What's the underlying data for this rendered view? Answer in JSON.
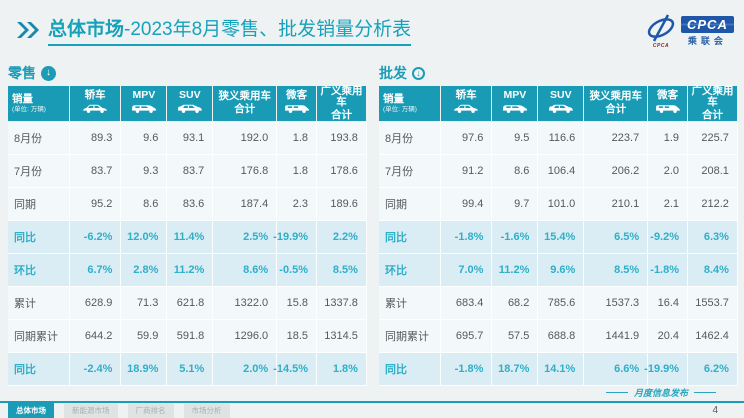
{
  "title": {
    "bold": "总体市场",
    "rest": "-2023年8月零售、批发销量分析表"
  },
  "logo": {
    "acronym": "CPCA",
    "name": "乘联会",
    "caption": "CPCA"
  },
  "columns": [
    {
      "label": "销量",
      "sub": "(单位: 万辆)"
    },
    {
      "label": "轿车",
      "icon": "sedan-icon"
    },
    {
      "label": "MPV",
      "icon": "mpv-icon"
    },
    {
      "label": "SUV",
      "icon": "suv-icon"
    },
    {
      "label": "狭义乘用车",
      "label2": "合计"
    },
    {
      "label": "微客",
      "icon": "microvan-icon"
    },
    {
      "label": "广义乘用车",
      "label2": "合计"
    }
  ],
  "tables": [
    {
      "name": "零售",
      "arrow_style": "filled",
      "rows": [
        {
          "label": "8月份",
          "type": "normal",
          "values": [
            "89.3",
            "9.6",
            "93.1",
            "192.0",
            "1.8",
            "193.8"
          ]
        },
        {
          "label": "7月份",
          "type": "normal",
          "values": [
            "83.7",
            "9.3",
            "83.7",
            "176.8",
            "1.8",
            "178.6"
          ]
        },
        {
          "label": "同期",
          "type": "normal",
          "values": [
            "95.2",
            "8.6",
            "83.6",
            "187.4",
            "2.3",
            "189.6"
          ]
        },
        {
          "label": "同比",
          "type": "percent",
          "values": [
            "-6.2%",
            "12.0%",
            "11.4%",
            "2.5%",
            "-19.9%",
            "2.2%"
          ]
        },
        {
          "label": "环比",
          "type": "percent",
          "values": [
            "6.7%",
            "2.8%",
            "11.2%",
            "8.6%",
            "-0.5%",
            "8.5%"
          ]
        },
        {
          "label": "累计",
          "type": "normal",
          "values": [
            "628.9",
            "71.3",
            "621.8",
            "1322.0",
            "15.8",
            "1337.8"
          ]
        },
        {
          "label": "同期累计",
          "type": "normal",
          "values": [
            "644.2",
            "59.9",
            "591.8",
            "1296.0",
            "18.5",
            "1314.5"
          ]
        },
        {
          "label": "同比",
          "type": "percent",
          "values": [
            "-2.4%",
            "18.9%",
            "5.1%",
            "2.0%",
            "-14.5%",
            "1.8%"
          ]
        }
      ]
    },
    {
      "name": "批发",
      "arrow_style": "ring",
      "rows": [
        {
          "label": "8月份",
          "type": "normal",
          "values": [
            "97.6",
            "9.5",
            "116.6",
            "223.7",
            "1.9",
            "225.7"
          ]
        },
        {
          "label": "7月份",
          "type": "normal",
          "values": [
            "91.2",
            "8.6",
            "106.4",
            "206.2",
            "2.0",
            "208.1"
          ]
        },
        {
          "label": "同期",
          "type": "normal",
          "values": [
            "99.4",
            "9.7",
            "101.0",
            "210.1",
            "2.1",
            "212.2"
          ]
        },
        {
          "label": "同比",
          "type": "percent",
          "values": [
            "-1.8%",
            "-1.6%",
            "15.4%",
            "6.5%",
            "-9.2%",
            "6.3%"
          ]
        },
        {
          "label": "环比",
          "type": "percent",
          "values": [
            "7.0%",
            "11.2%",
            "9.6%",
            "8.5%",
            "-1.8%",
            "8.4%"
          ]
        },
        {
          "label": "累计",
          "type": "normal",
          "values": [
            "683.4",
            "68.2",
            "785.6",
            "1537.3",
            "16.4",
            "1553.7"
          ]
        },
        {
          "label": "同期累计",
          "type": "normal",
          "values": [
            "695.7",
            "57.5",
            "688.8",
            "1441.9",
            "20.4",
            "1462.4"
          ]
        },
        {
          "label": "同比",
          "type": "percent",
          "values": [
            "-1.8%",
            "18.7%",
            "14.1%",
            "6.6%",
            "-19.9%",
            "6.2%"
          ]
        }
      ]
    }
  ],
  "footer": {
    "tabs": [
      {
        "label": "总体市场",
        "active": true
      },
      {
        "label": "新能源市场",
        "active": false
      },
      {
        "label": "厂商排名",
        "active": false
      },
      {
        "label": "市场分析",
        "active": false
      }
    ],
    "note": "月度信息发布",
    "page": "4"
  },
  "watermark": "CPCA",
  "colors": {
    "accent": "#199BB6",
    "percent_text": "#2FAFC8",
    "title": "#17A2BC",
    "logo_blue": "#2056A8"
  }
}
